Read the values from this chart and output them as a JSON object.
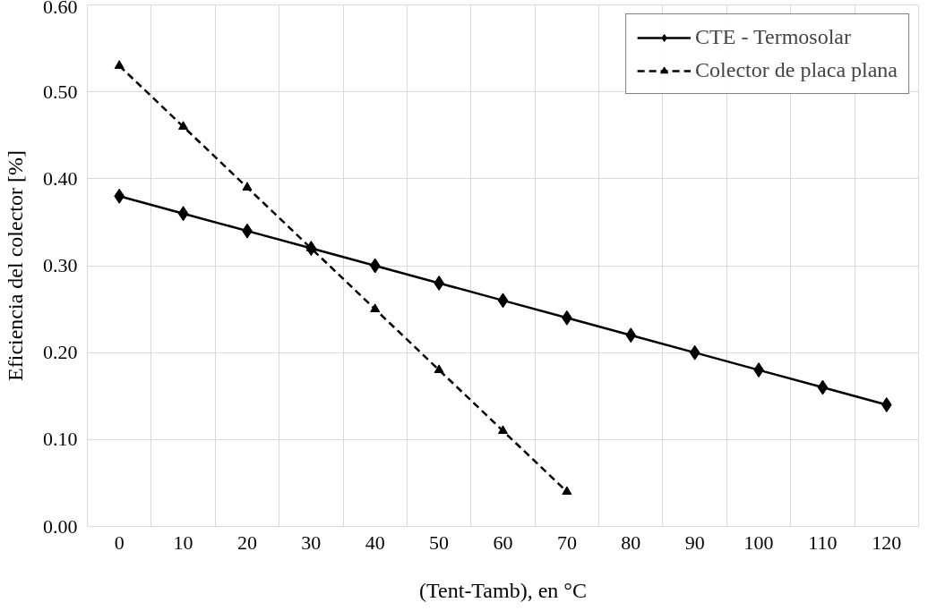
{
  "chart_data": {
    "type": "line",
    "xlabel": "(Tent-Tamb), en °C",
    "ylabel": "Eficiencia del colector [%]",
    "x": [
      0,
      10,
      20,
      30,
      40,
      50,
      60,
      70,
      80,
      90,
      100,
      110,
      120
    ],
    "series": [
      {
        "name": "CTE - Termosolar",
        "color": "#000000",
        "marker": "diamond",
        "line_style": "solid",
        "values": [
          0.38,
          0.36,
          0.34,
          0.32,
          0.3,
          0.28,
          0.26,
          0.24,
          0.22,
          0.2,
          0.18,
          0.16,
          0.14
        ]
      },
      {
        "name": "Colector de placa plana",
        "color": "#000000",
        "marker": "triangle",
        "line_style": "dashed",
        "x": [
          0,
          10,
          20,
          30,
          40,
          50,
          60,
          70
        ],
        "values": [
          0.53,
          0.46,
          0.39,
          0.32,
          0.25,
          0.18,
          0.11,
          0.04
        ]
      }
    ],
    "xlim": [
      -5,
      125
    ],
    "xticks": [
      0,
      10,
      20,
      30,
      40,
      50,
      60,
      70,
      80,
      90,
      100,
      110,
      120
    ],
    "ylim": [
      0,
      0.6
    ],
    "yticks": [
      {
        "value": 0,
        "label": "0.00"
      },
      {
        "value": 0.1,
        "label": "0.10"
      },
      {
        "value": 0.2,
        "label": "0.20"
      },
      {
        "value": 0.3,
        "label": "0.30"
      },
      {
        "value": 0.4,
        "label": "0.40"
      },
      {
        "value": 0.5,
        "label": "0.50"
      },
      {
        "value": 0.6,
        "label": "0.60"
      }
    ],
    "grid": true,
    "legend": "top right"
  }
}
